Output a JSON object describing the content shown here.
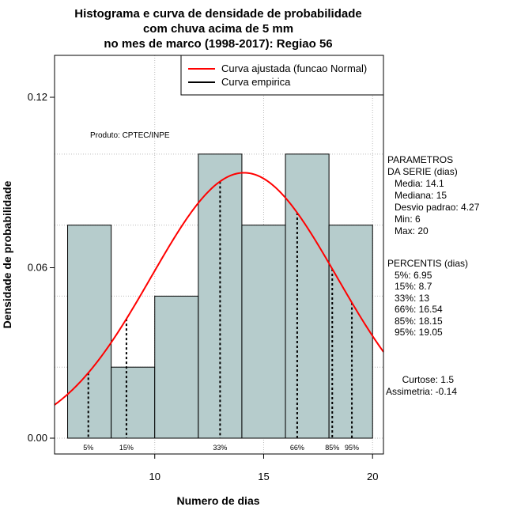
{
  "chart_data": {
    "type": "bar",
    "title_lines": [
      "Histograma e curva de densidade de probabilidade",
      "com chuva acima de 5 mm",
      "no mes de marco (1998-2017): Regiao 56"
    ],
    "xlabel": "Numero de dias",
    "ylabel": "Densidade de probabilidade",
    "xlim": [
      5.4,
      20.5
    ],
    "ylim": [
      0,
      0.135
    ],
    "x_ticks": [
      10,
      15,
      20
    ],
    "y_ticks": [
      0,
      0.06,
      0.12
    ],
    "y_tick_labels": [
      "0.00",
      "0.06",
      "0.12"
    ],
    "grid": true,
    "bins": [
      {
        "from": 6,
        "to": 8,
        "density": 0.075
      },
      {
        "from": 8,
        "to": 10,
        "density": 0.025
      },
      {
        "from": 10,
        "to": 12,
        "density": 0.05
      },
      {
        "from": 12,
        "to": 14,
        "density": 0.1
      },
      {
        "from": 14,
        "to": 16,
        "density": 0.075
      },
      {
        "from": 16,
        "to": 18,
        "density": 0.1
      },
      {
        "from": 18,
        "to": 20,
        "density": 0.075
      }
    ],
    "normal_fit": {
      "mean": 14.1,
      "sd": 4.27
    },
    "percentiles": [
      {
        "label": "5%",
        "value": 6.95
      },
      {
        "label": "15%",
        "value": 8.7
      },
      {
        "label": "33%",
        "value": 13
      },
      {
        "label": "66%",
        "value": 16.54
      },
      {
        "label": "85%",
        "value": 18.15
      },
      {
        "label": "95%",
        "value": 19.05
      }
    ],
    "legend": {
      "position": "top-right",
      "entries": [
        {
          "label": "Curva ajustada (funcao Normal)",
          "color": "#ff0000"
        },
        {
          "label": "Curva empirica",
          "color": "#000000"
        }
      ]
    },
    "annotation": "Produto: CPTEC/INPE",
    "colors": {
      "bar_fill": "#b6cccc",
      "curve": "#ff0000",
      "grid": "#bbbbbb"
    }
  },
  "side_panel": {
    "params_header": [
      "PARAMETROS",
      "DA SERIE (dias)"
    ],
    "params": [
      "Media: 14.1",
      "Mediana: 15",
      "Desvio padrao: 4.27",
      "Min: 6",
      "Max: 20"
    ],
    "percentis_header": "PERCENTIS (dias)",
    "percentis": [
      "5%: 6.95",
      "15%: 8.7",
      "33%: 13",
      "66%: 16.54",
      "85%: 18.15",
      "95%: 19.05"
    ],
    "curtose": "Curtose: 1.5",
    "assimetria": "Assimetria: -0.14"
  }
}
